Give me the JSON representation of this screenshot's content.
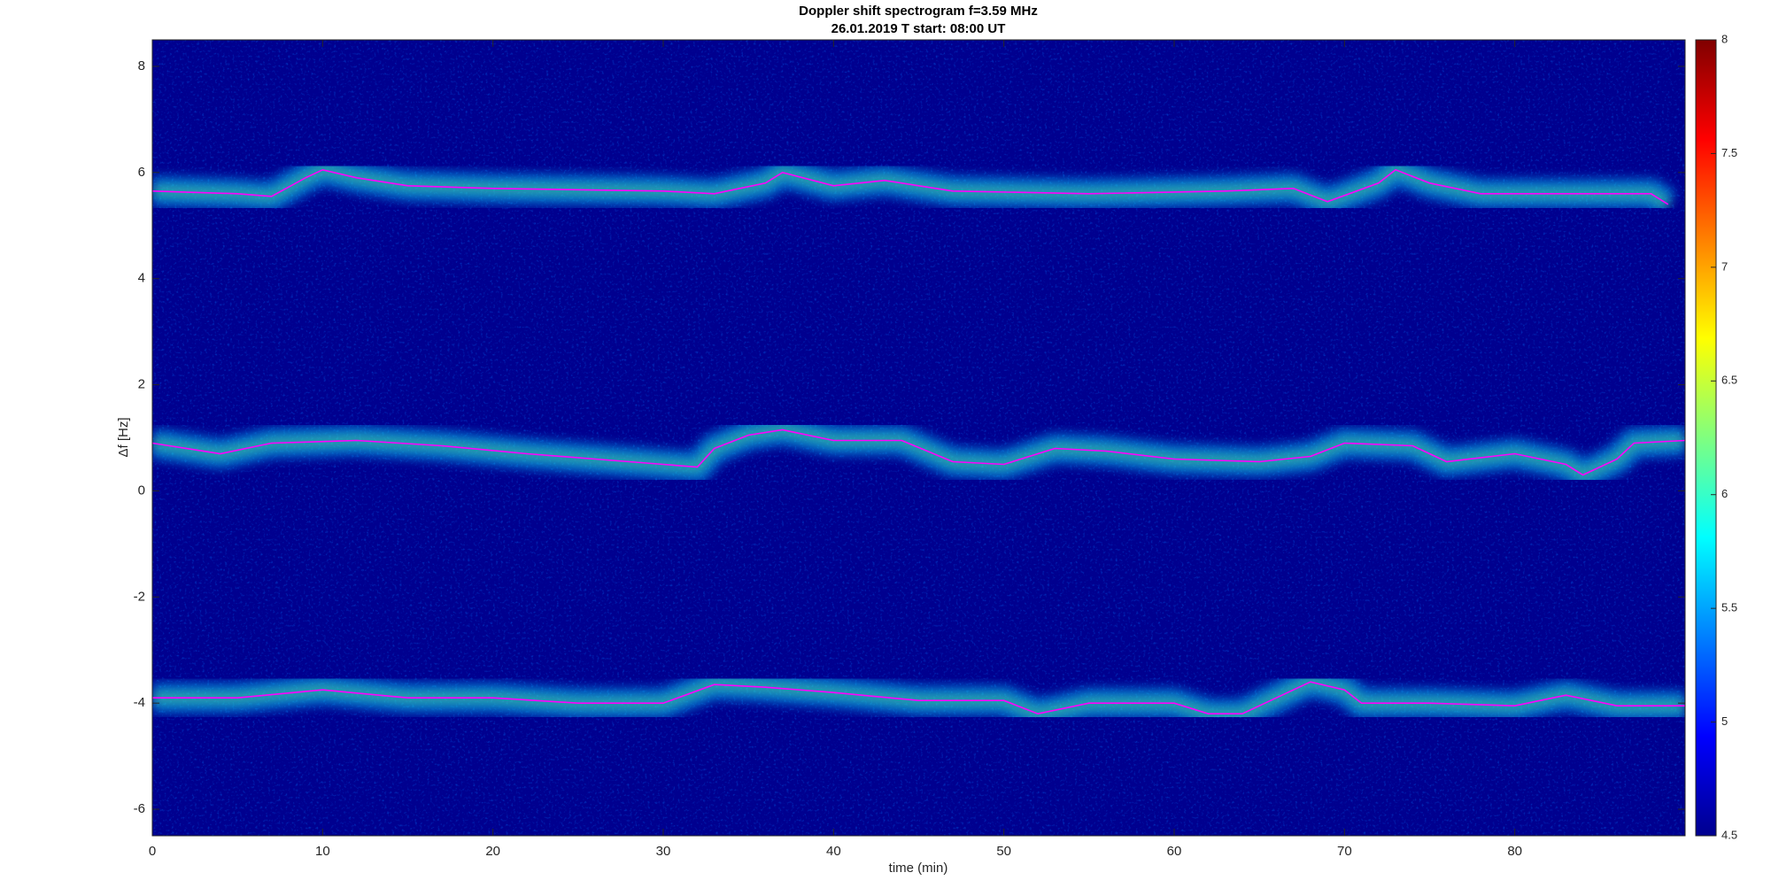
{
  "chart_data": {
    "type": "line",
    "title": "Doppler shift spectrogram f=3.59 MHz",
    "subtitle": "26.01.2019   T start: 08:00 UT",
    "x_label": "time (min)",
    "y_label": "Δf [Hz]",
    "xlim": [
      0,
      90
    ],
    "xticks": [
      0,
      10,
      20,
      30,
      40,
      50,
      60,
      70,
      80
    ],
    "ylim": [
      -6.5,
      8.5
    ],
    "yticks": [
      -6,
      -4,
      -2,
      0,
      2,
      4,
      6,
      8
    ],
    "colorbar": {
      "lim": [
        4.5,
        8
      ],
      "ticks": [
        4.5,
        5,
        5.5,
        6,
        6.5,
        7,
        7.5,
        8
      ]
    },
    "series": [
      {
        "color": "#ff00ff",
        "x": [
          0,
          5,
          7,
          9,
          10,
          12,
          15,
          20,
          30,
          33,
          36,
          37,
          40,
          43,
          47,
          55,
          63,
          67,
          69,
          72,
          73,
          75,
          78,
          88,
          89
        ],
        "values": [
          5.65,
          5.6,
          5.55,
          5.9,
          6.05,
          5.9,
          5.75,
          5.7,
          5.65,
          5.6,
          5.8,
          6.0,
          5.75,
          5.85,
          5.65,
          5.6,
          5.65,
          5.7,
          5.45,
          5.8,
          6.05,
          5.8,
          5.6,
          5.6,
          5.4
        ]
      },
      {
        "color": "#ff00ff",
        "x": [
          0,
          4,
          7,
          12,
          17,
          22,
          26,
          30,
          32,
          33,
          35,
          37,
          40,
          44,
          47,
          50,
          53,
          56,
          60,
          65,
          68,
          70,
          74,
          76,
          80,
          83,
          84,
          86,
          87,
          90
        ],
        "values": [
          0.9,
          0.7,
          0.9,
          0.95,
          0.85,
          0.7,
          0.6,
          0.5,
          0.45,
          0.8,
          1.05,
          1.15,
          0.95,
          0.95,
          0.55,
          0.5,
          0.8,
          0.75,
          0.6,
          0.55,
          0.65,
          0.9,
          0.85,
          0.55,
          0.7,
          0.5,
          0.3,
          0.6,
          0.9,
          0.95
        ]
      },
      {
        "color": "#ff00ff",
        "x": [
          0,
          5,
          10,
          15,
          20,
          25,
          30,
          33,
          36,
          40,
          45,
          50,
          52,
          55,
          60,
          62,
          64,
          66,
          68,
          70,
          71,
          75,
          80,
          83,
          86,
          90
        ],
        "values": [
          -3.9,
          -3.9,
          -3.75,
          -3.9,
          -3.9,
          -4.0,
          -4.0,
          -3.65,
          -3.7,
          -3.8,
          -3.95,
          -3.95,
          -4.2,
          -4.0,
          -4.0,
          -4.2,
          -4.2,
          -3.9,
          -3.6,
          -3.75,
          -4.0,
          -4.0,
          -4.05,
          -3.85,
          -4.05,
          -4.05
        ]
      }
    ]
  }
}
